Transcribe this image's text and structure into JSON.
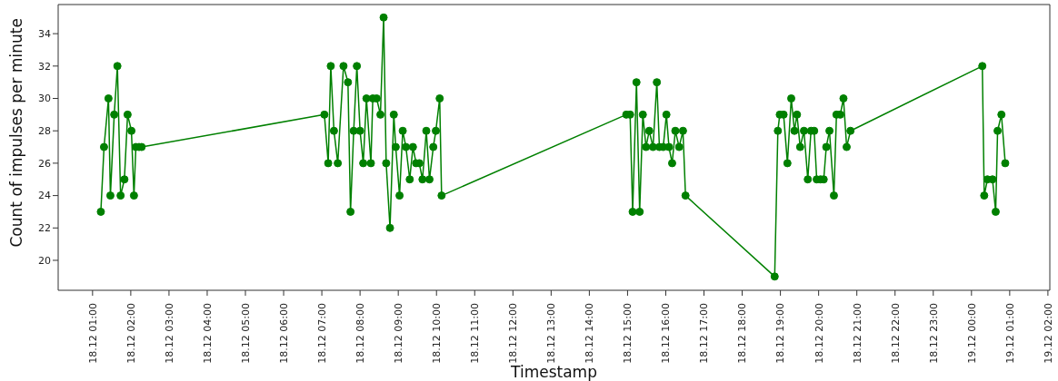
{
  "chart_data": {
    "type": "line",
    "xlabel": "Timestamp",
    "ylabel": "Count of impulses per minute",
    "marker": "circle",
    "line_style": "solid",
    "xlim": [
      "--12-18T00:06",
      "--12-19T02:03"
    ],
    "ylim": [
      18.15,
      35.8
    ],
    "yticks": [
      20,
      22,
      24,
      26,
      28,
      30,
      32,
      34
    ],
    "xticks": [
      {
        "value": "--12-18T01:00",
        "label": "18.12 01:00"
      },
      {
        "value": "--12-18T02:00",
        "label": "18.12 02:00"
      },
      {
        "value": "--12-18T03:00",
        "label": "18.12 03:00"
      },
      {
        "value": "--12-18T04:00",
        "label": "18.12 04:00"
      },
      {
        "value": "--12-18T05:00",
        "label": "18.12 05:00"
      },
      {
        "value": "--12-18T06:00",
        "label": "18.12 06:00"
      },
      {
        "value": "--12-18T07:00",
        "label": "18.12 07:00"
      },
      {
        "value": "--12-18T08:00",
        "label": "18.12 08:00"
      },
      {
        "value": "--12-18T09:00",
        "label": "18.12 09:00"
      },
      {
        "value": "--12-18T10:00",
        "label": "18.12 10:00"
      },
      {
        "value": "--12-18T11:00",
        "label": "18.12 11:00"
      },
      {
        "value": "--12-18T12:00",
        "label": "18.12 12:00"
      },
      {
        "value": "--12-18T13:00",
        "label": "18.12 13:00"
      },
      {
        "value": "--12-18T14:00",
        "label": "18.12 14:00"
      },
      {
        "value": "--12-18T15:00",
        "label": "18.12 15:00"
      },
      {
        "value": "--12-18T16:00",
        "label": "18.12 16:00"
      },
      {
        "value": "--12-18T17:00",
        "label": "18.12 17:00"
      },
      {
        "value": "--12-18T18:00",
        "label": "18.12 18:00"
      },
      {
        "value": "--12-18T19:00",
        "label": "18.12 19:00"
      },
      {
        "value": "--12-18T20:00",
        "label": "18.12 20:00"
      },
      {
        "value": "--12-18T21:00",
        "label": "18.12 21:00"
      },
      {
        "value": "--12-18T22:00",
        "label": "18.12 22:00"
      },
      {
        "value": "--12-18T23:00",
        "label": "18.12 23:00"
      },
      {
        "value": "--12-19T00:00",
        "label": "19.12 00:00"
      },
      {
        "value": "--12-19T01:00",
        "label": "19.12 01:00"
      },
      {
        "value": "--12-19T02:00",
        "label": "19.12 02:00"
      }
    ],
    "x": [
      "--12-18T01:13",
      "--12-18T01:18",
      "--12-18T01:25",
      "--12-18T01:28",
      "--12-18T01:34",
      "--12-18T01:39",
      "--12-18T01:44",
      "--12-18T01:50",
      "--12-18T01:55",
      "--12-18T02:01",
      "--12-18T02:05",
      "--12-18T02:08",
      "--12-18T02:13",
      "--12-18T02:17",
      "--12-18T07:04",
      "--12-18T07:10",
      "--12-18T07:14",
      "--12-18T07:19",
      "--12-18T07:25",
      "--12-18T07:34",
      "--12-18T07:41",
      "--12-18T07:45",
      "--12-18T07:50",
      "--12-18T07:55",
      "--12-18T08:00",
      "--12-18T08:05",
      "--12-18T08:10",
      "--12-18T08:17",
      "--12-18T08:20",
      "--12-18T08:26",
      "--12-18T08:32",
      "--12-18T08:37",
      "--12-18T08:41",
      "--12-18T08:47",
      "--12-18T08:53",
      "--12-18T08:56",
      "--12-18T09:02",
      "--12-18T09:07",
      "--12-18T09:12",
      "--12-18T09:18",
      "--12-18T09:23",
      "--12-18T09:28",
      "--12-18T09:33",
      "--12-18T09:38",
      "--12-18T09:44",
      "--12-18T09:49",
      "--12-18T09:55",
      "--12-18T09:59",
      "--12-18T10:05",
      "--12-18T10:08",
      "--12-18T14:58",
      "--12-18T15:04",
      "--12-18T15:08",
      "--12-18T15:14",
      "--12-18T15:19",
      "--12-18T15:24",
      "--12-18T15:29",
      "--12-18T15:34",
      "--12-18T15:40",
      "--12-18T15:46",
      "--12-18T15:50",
      "--12-18T15:56",
      "--12-18T16:01",
      "--12-18T16:05",
      "--12-18T16:10",
      "--12-18T16:15",
      "--12-18T16:21",
      "--12-18T16:27",
      "--12-18T16:31",
      "--12-18T18:51",
      "--12-18T18:56",
      "--12-18T18:59",
      "--12-18T19:05",
      "--12-18T19:11",
      "--12-18T19:17",
      "--12-18T19:22",
      "--12-18T19:26",
      "--12-18T19:31",
      "--12-18T19:37",
      "--12-18T19:43",
      "--12-18T19:48",
      "--12-18T19:53",
      "--12-18T19:57",
      "--12-18T20:03",
      "--12-18T20:08",
      "--12-18T20:12",
      "--12-18T20:17",
      "--12-18T20:24",
      "--12-18T20:28",
      "--12-18T20:34",
      "--12-18T20:39",
      "--12-18T20:44",
      "--12-18T20:50",
      "--12-19T00:17",
      "--12-19T00:20",
      "--12-19T00:25",
      "--12-19T00:33",
      "--12-19T00:38",
      "--12-19T00:41",
      "--12-19T00:47",
      "--12-19T00:53"
    ],
    "series": [
      {
        "color": "#008000",
        "values": [
          23,
          27,
          30,
          24,
          29,
          32,
          24,
          25,
          29,
          28,
          24,
          27,
          27,
          27,
          29,
          26,
          32,
          28,
          26,
          32,
          31,
          23,
          28,
          32,
          28,
          26,
          30,
          26,
          30,
          30,
          29,
          35,
          26,
          22,
          29,
          27,
          24,
          28,
          27,
          25,
          27,
          26,
          26,
          25,
          28,
          25,
          27,
          28,
          30,
          24,
          29,
          29,
          23,
          31,
          23,
          29,
          27,
          28,
          27,
          31,
          27,
          27,
          29,
          27,
          26,
          28,
          27,
          28,
          24,
          19,
          28,
          29,
          29,
          26,
          30,
          28,
          29,
          27,
          28,
          25,
          28,
          28,
          25,
          25,
          25,
          27,
          28,
          24,
          29,
          29,
          30,
          27,
          28,
          32,
          24,
          25,
          25,
          23,
          28,
          29,
          26
        ]
      }
    ]
  }
}
